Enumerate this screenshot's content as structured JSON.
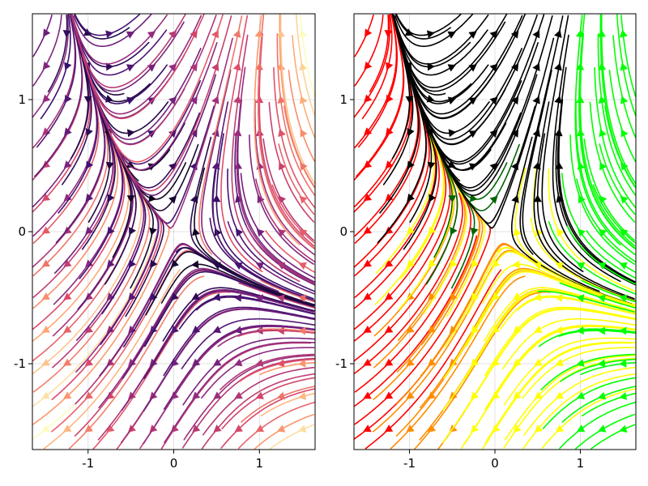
{
  "chart_data": [
    {
      "type": "streamplot",
      "title": "",
      "xlabel": "",
      "ylabel": "",
      "xlim": [
        -1.65,
        1.65
      ],
      "ylim": [
        -1.65,
        1.65
      ],
      "xticks": [
        -1,
        0,
        1
      ],
      "yticks": [
        -1,
        0,
        1
      ],
      "xtick_labels": [
        "-1",
        "0",
        "1"
      ],
      "ytick_labels": [
        "-1",
        "0",
        "1"
      ],
      "grid": true,
      "field": {
        "u": "y - x*x",
        "v": "x + y + 0.5*x*y"
      },
      "seed_grid": {
        "x_range": [
          -1.5,
          1.5
        ],
        "y_range": [
          -1.5,
          1.5
        ],
        "n": 13
      },
      "color_by": "speed",
      "colormap": [
        "#000004",
        "#3b0f70",
        "#8c2981",
        "#de4968",
        "#fe9f6d",
        "#fcfdbf"
      ]
    },
    {
      "type": "streamplot",
      "title": "",
      "xlabel": "",
      "ylabel": "",
      "xlim": [
        -1.65,
        1.65
      ],
      "ylim": [
        -1.65,
        1.65
      ],
      "xticks": [
        -1,
        0,
        1
      ],
      "yticks": [
        -1,
        0,
        1
      ],
      "xtick_labels": [
        "-1",
        "0",
        "1"
      ],
      "ytick_labels": [
        "-1",
        "0",
        "1"
      ],
      "grid": true,
      "field": {
        "u": "y - x*x",
        "v": "x + y + 0.5*x*y"
      },
      "seed_grid": {
        "x_range": [
          -1.5,
          1.5
        ],
        "y_range": [
          -1.5,
          1.5
        ],
        "n": 13
      },
      "color_by": "direction",
      "region_colors": {
        "left": "#ff0000",
        "bottom_left": "#ff8c00",
        "bottom_right": "#ffff00",
        "right": "#00ff00",
        "top": "#000000",
        "top_inner": "#006400"
      }
    }
  ]
}
